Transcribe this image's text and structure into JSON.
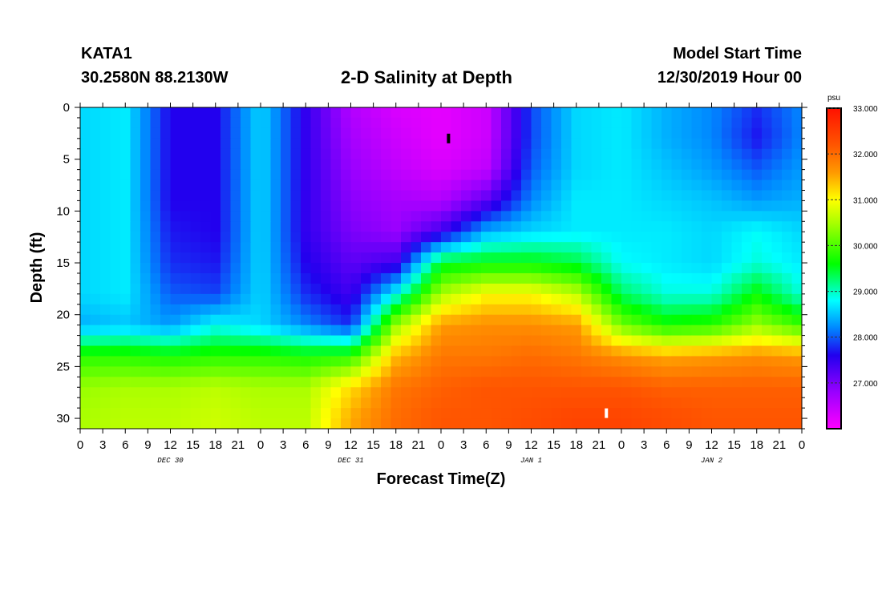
{
  "header": {
    "station": "KATA1",
    "coords": "30.2580N 88.2130W",
    "title": "2-D Salinity at Depth",
    "model_start_label": "Model Start Time",
    "model_start_value": "12/30/2019 Hour 00"
  },
  "chart_data": {
    "type": "heatmap",
    "title": "2-D Salinity at Depth",
    "xlabel": "Forecast Time(Z)",
    "ylabel": "Depth (ft)",
    "x_range_hours": [
      0,
      96
    ],
    "ylim": [
      31,
      0
    ],
    "y_ticks": [
      0,
      5,
      10,
      15,
      20,
      25,
      30
    ],
    "x_tick_labels": [
      "0",
      "3",
      "6",
      "9",
      "12",
      "15",
      "18",
      "21",
      "0",
      "3",
      "6",
      "9",
      "12",
      "15",
      "18",
      "21",
      "0",
      "3",
      "6",
      "9",
      "12",
      "15",
      "18",
      "21",
      "0",
      "3",
      "6",
      "9",
      "12",
      "15",
      "18",
      "21",
      "0"
    ],
    "date_labels": [
      "DEC 30",
      "DEC 31",
      "JAN 1",
      "JAN 2"
    ],
    "colorbar": {
      "unit": "psu",
      "min": 26.0,
      "max": 33.0,
      "tick_labels": [
        "33.000",
        "32.000",
        "31.000",
        "30.000",
        "29.000",
        "28.000",
        "27.000"
      ]
    },
    "colormap": [
      {
        "v": 26.0,
        "color": "#ff00ff"
      },
      {
        "v": 26.8,
        "color": "#9900ff"
      },
      {
        "v": 27.6,
        "color": "#2200ee"
      },
      {
        "v": 28.2,
        "color": "#0088ff"
      },
      {
        "v": 28.8,
        "color": "#00ffff"
      },
      {
        "v": 29.6,
        "color": "#00ff00"
      },
      {
        "v": 30.5,
        "color": "#aaff00"
      },
      {
        "v": 31.0,
        "color": "#ffff00"
      },
      {
        "v": 31.6,
        "color": "#ff9900"
      },
      {
        "v": 32.2,
        "color": "#ff5500"
      },
      {
        "v": 33.0,
        "color": "#ff1100"
      }
    ],
    "time_hours": [
      0,
      6,
      12,
      18,
      24,
      30,
      36,
      42,
      48,
      54,
      60,
      66,
      72,
      78,
      84,
      90,
      96
    ],
    "depth_ft": [
      0,
      3,
      6,
      9,
      12,
      15,
      18,
      21,
      24,
      27,
      30,
      31
    ],
    "salinity": [
      [
        28.6,
        28.7,
        27.6,
        27.6,
        28.6,
        27.5,
        26.6,
        26.3,
        26.2,
        26.4,
        27.9,
        28.6,
        28.7,
        28.4,
        28.2,
        27.8,
        28.2
      ],
      [
        28.6,
        28.7,
        27.6,
        27.6,
        28.6,
        27.5,
        26.7,
        26.4,
        26.2,
        26.4,
        27.9,
        28.6,
        28.7,
        28.4,
        28.2,
        27.7,
        28.2
      ],
      [
        28.6,
        28.7,
        27.6,
        27.6,
        28.6,
        27.5,
        26.8,
        26.5,
        26.3,
        26.5,
        28.0,
        28.6,
        28.7,
        28.5,
        28.3,
        28.0,
        28.3
      ],
      [
        28.6,
        28.7,
        27.6,
        27.6,
        28.6,
        27.5,
        26.9,
        26.7,
        26.6,
        27.2,
        28.2,
        28.7,
        28.7,
        28.6,
        28.5,
        28.3,
        28.4
      ],
      [
        28.6,
        28.7,
        27.7,
        27.6,
        28.6,
        27.5,
        27.0,
        26.8,
        27.4,
        28.4,
        28.6,
        28.7,
        28.7,
        28.7,
        28.6,
        28.8,
        28.6
      ],
      [
        28.6,
        28.7,
        27.8,
        27.7,
        28.6,
        27.6,
        27.2,
        27.4,
        29.5,
        29.6,
        29.6,
        29.4,
        28.8,
        28.7,
        28.6,
        28.9,
        28.7
      ],
      [
        28.6,
        28.7,
        28.0,
        27.9,
        28.6,
        27.8,
        27.4,
        28.8,
        30.5,
        31.0,
        31.0,
        30.6,
        29.3,
        28.9,
        28.9,
        29.6,
        28.9
      ],
      [
        28.4,
        28.5,
        28.3,
        28.8,
        28.6,
        28.2,
        27.8,
        30.4,
        31.6,
        31.7,
        31.7,
        31.6,
        30.2,
        29.7,
        29.8,
        30.4,
        29.9
      ],
      [
        29.8,
        29.8,
        29.7,
        29.8,
        29.8,
        29.7,
        29.8,
        31.4,
        31.9,
        31.9,
        32.0,
        31.9,
        31.7,
        31.5,
        31.6,
        31.7,
        31.6
      ],
      [
        30.4,
        30.5,
        30.5,
        30.6,
        30.5,
        30.5,
        31.2,
        31.9,
        32.1,
        32.2,
        32.2,
        32.2,
        32.2,
        32.1,
        32.1,
        32.1,
        32.1
      ],
      [
        30.5,
        30.6,
        30.6,
        30.7,
        30.6,
        30.6,
        31.5,
        32.0,
        32.2,
        32.2,
        32.3,
        32.4,
        32.4,
        32.3,
        32.2,
        32.2,
        32.2
      ],
      [
        30.5,
        30.6,
        30.6,
        30.7,
        30.6,
        30.6,
        31.5,
        32.0,
        32.2,
        32.2,
        32.3,
        32.4,
        32.4,
        32.3,
        32.2,
        32.2,
        32.2
      ]
    ],
    "markers": [
      {
        "type": "min",
        "hour": 49,
        "depth_ft": 3,
        "color": "#000000"
      },
      {
        "type": "max",
        "hour": 70,
        "depth_ft": 29.5,
        "color": "#ffffff"
      }
    ]
  }
}
